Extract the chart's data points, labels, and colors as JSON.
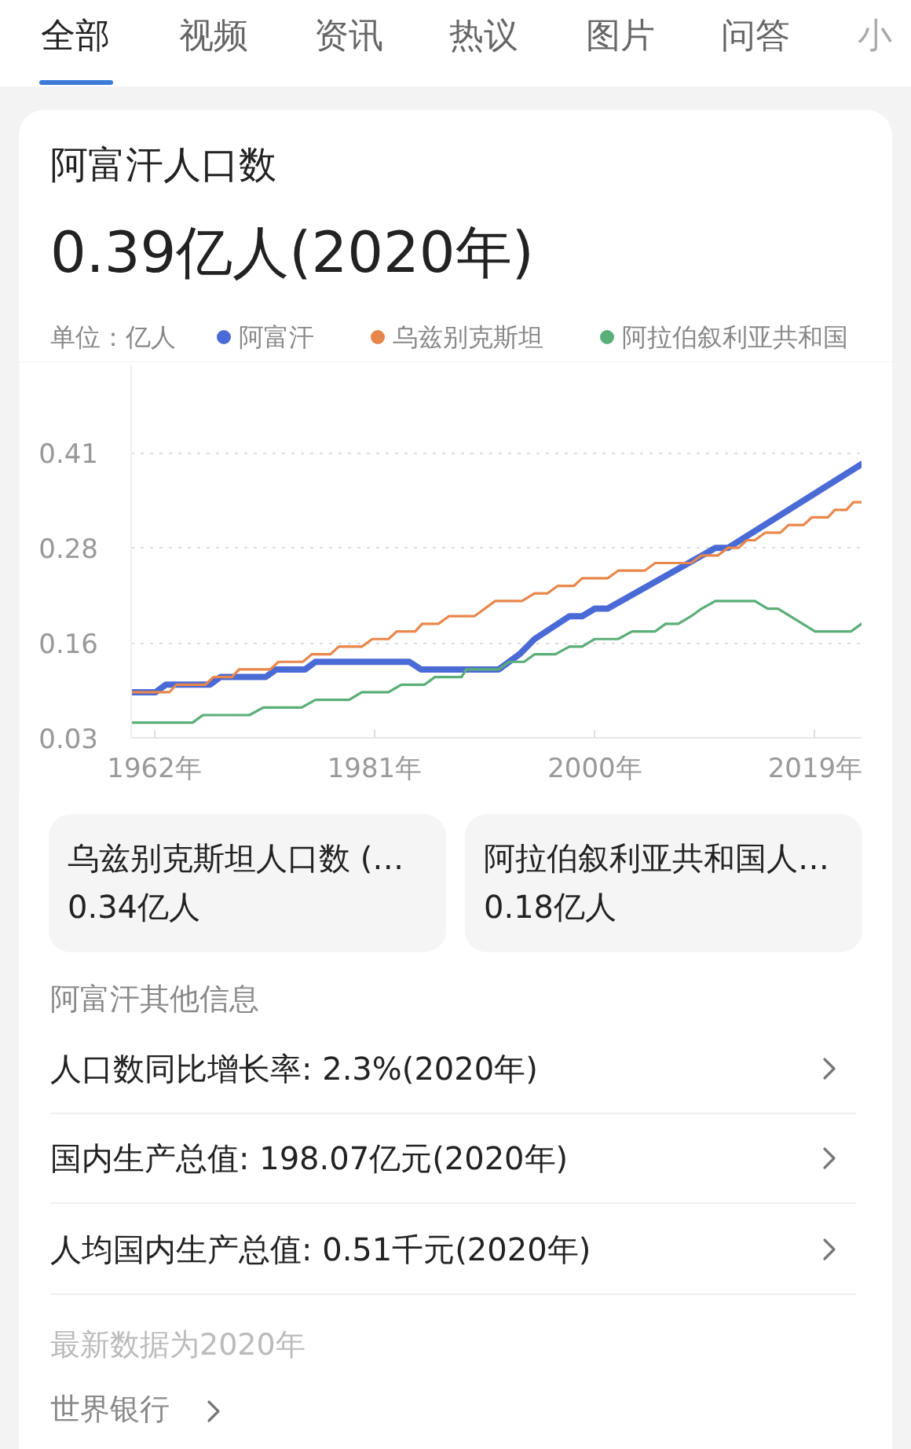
{
  "chart_data": {
    "type": "line",
    "title": "阿富汗人口数",
    "subtitle": "0.39亿人(2020年)",
    "ylabel": "单位：亿人",
    "series": [
      {
        "name": "阿富汗",
        "color": "#4a6ad6",
        "x": [
          1960,
          1962.1,
          1963,
          1966.8,
          1967.7,
          1971.6,
          1972.5,
          1975,
          1975.9,
          1984,
          1985,
          1991.7,
          1993.5,
          1994.8,
          1997.8,
          1998.9,
          2000,
          2001.1,
          2010.4,
          2011.5,
          2023
        ],
        "values": [
          0.09,
          0.09,
          0.1,
          0.1,
          0.11,
          0.11,
          0.12,
          0.12,
          0.13,
          0.13,
          0.12,
          0.12,
          0.14,
          0.16,
          0.19,
          0.19,
          0.2,
          0.2,
          0.28,
          0.28,
          0.39
        ]
      },
      {
        "name": "乌兹别克斯坦",
        "color": "#e8874b",
        "x": [
          1960,
          1963.3,
          1963.9,
          1966.4,
          1967.1,
          1968.7,
          1969.3,
          1972.0,
          1972.7,
          1974.8,
          1975.6,
          1977.2,
          1977.9,
          1979.9,
          1980.8,
          1982.2,
          1982.9,
          1984.5,
          1985.1,
          1986.5,
          1987.4,
          1989.6,
          1991.4,
          1993.7,
          1994.8,
          1995.9,
          1996.8,
          1998.2,
          1998.9,
          2001.1,
          2002.0,
          2004.3,
          2005.2,
          2008.3,
          2009.2,
          2010.6,
          2011.5,
          2012.4,
          2013.1,
          2013.8,
          2014.7,
          2016.0,
          2016.7,
          2018.0,
          2018.7,
          2020.1,
          2020.7,
          2021.7,
          2022.3,
          2023
        ],
        "values": [
          0.09,
          0.09,
          0.1,
          0.1,
          0.11,
          0.11,
          0.12,
          0.12,
          0.13,
          0.13,
          0.14,
          0.14,
          0.15,
          0.15,
          0.16,
          0.16,
          0.17,
          0.17,
          0.18,
          0.18,
          0.19,
          0.19,
          0.21,
          0.21,
          0.22,
          0.22,
          0.23,
          0.23,
          0.24,
          0.24,
          0.25,
          0.25,
          0.26,
          0.26,
          0.27,
          0.27,
          0.28,
          0.28,
          0.29,
          0.29,
          0.3,
          0.3,
          0.31,
          0.31,
          0.32,
          0.32,
          0.33,
          0.33,
          0.34,
          0.34
        ]
      },
      {
        "name": "阿拉伯叙利亚共和国",
        "color": "#5aae78",
        "x": [
          1960,
          1965.3,
          1966.2,
          1970.2,
          1971.4,
          1974.7,
          1975.9,
          1978.8,
          1979.9,
          1982.2,
          1983.3,
          1985.3,
          1986.2,
          1988.5,
          1988.9,
          1991.7,
          1992.6,
          1993.9,
          1994.8,
          1996.6,
          1997.8,
          1998.9,
          2000.0,
          2002.0,
          2003.2,
          2005.2,
          2006.1,
          2007.2,
          2008.3,
          2009.2,
          2010.4,
          2013.8,
          2014.9,
          2015.8,
          2019.0,
          2022.1,
          2023
        ],
        "values": [
          0.05,
          0.05,
          0.06,
          0.06,
          0.07,
          0.07,
          0.08,
          0.08,
          0.09,
          0.09,
          0.1,
          0.1,
          0.11,
          0.11,
          0.12,
          0.12,
          0.13,
          0.13,
          0.14,
          0.14,
          0.15,
          0.15,
          0.16,
          0.16,
          0.17,
          0.17,
          0.18,
          0.18,
          0.19,
          0.2,
          0.21,
          0.21,
          0.2,
          0.2,
          0.17,
          0.17,
          0.18
        ]
      }
    ],
    "xlim": [
      1960,
      2023
    ],
    "xticks": [
      {
        "value": 1962,
        "label": "1962年"
      },
      {
        "value": 1981,
        "label": "1981年"
      },
      {
        "value": 2000,
        "label": "2000年"
      },
      {
        "value": 2019,
        "label": "2019年"
      }
    ],
    "ylim": [
      0.03,
      0.52
    ],
    "yticks": [
      0.03,
      {
        "value": 0.155,
        "label": "0.16"
      },
      0.28,
      {
        "value": 0.405,
        "label": "0.41"
      }
    ],
    "grid": "y",
    "legend": "top",
    "line_style": "solid",
    "annotations": [
      "全部",
      "视频",
      "资讯",
      "热议",
      "图片",
      "问答",
      "小",
      "乌兹别克斯坦人口数 (…",
      "0.34亿人",
      "阿拉伯叙利亚共和国人…",
      "0.18亿人",
      "阿富汗其他信息",
      "人口数同比增长率: 2.3%(2020年)",
      "国内生产总值: 198.07亿元(2020年)",
      "人均国内生产总值: 0.51千元(2020年)",
      "最新数据为2020年",
      "世界银行"
    ]
  }
}
